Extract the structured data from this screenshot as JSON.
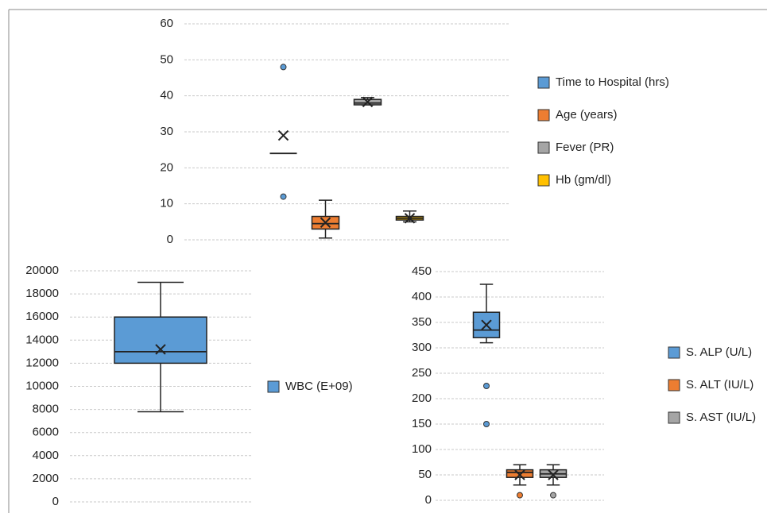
{
  "chart_data": [
    {
      "type": "box",
      "ylim": [
        0,
        60
      ],
      "yticks": [
        0,
        10,
        20,
        30,
        40,
        50,
        60
      ],
      "grid": true,
      "legend": "right",
      "series": [
        {
          "name": "Time to Hospital (hrs)",
          "color": "#5b9bd5",
          "min": 24,
          "q1": 24,
          "median": 24,
          "q3": 24,
          "max": 24,
          "mean": 29,
          "outliers": [
            48,
            12
          ]
        },
        {
          "name": "Age (years)",
          "color": "#ed7d31",
          "min": 0.5,
          "q1": 3,
          "median": 4.5,
          "q3": 6.5,
          "max": 11,
          "mean": 4.8,
          "outliers": []
        },
        {
          "name": "Fever (PR)",
          "color": "#a5a5a5",
          "min": 37.5,
          "q1": 37.5,
          "median": 38,
          "q3": 39,
          "max": 39.5,
          "mean": 38.3,
          "outliers": []
        },
        {
          "name": "Hb (gm/dl)",
          "color": "#ffc000",
          "min": 5,
          "q1": 5.5,
          "median": 6,
          "q3": 6.5,
          "max": 8,
          "mean": 6,
          "outliers": []
        }
      ]
    },
    {
      "type": "box",
      "ylim": [
        0,
        20000
      ],
      "yticks": [
        0,
        2000,
        4000,
        6000,
        8000,
        10000,
        12000,
        14000,
        16000,
        18000,
        20000
      ],
      "grid": true,
      "legend": "right",
      "series": [
        {
          "name": "WBC (E+09)",
          "color": "#5b9bd5",
          "min": 7800,
          "q1": 12000,
          "median": 13000,
          "q3": 16000,
          "max": 19000,
          "mean": 13200,
          "outliers": []
        }
      ]
    },
    {
      "type": "box",
      "ylim": [
        0,
        450
      ],
      "yticks": [
        0,
        50,
        100,
        150,
        200,
        250,
        300,
        350,
        400,
        450
      ],
      "grid": true,
      "legend": "right",
      "series": [
        {
          "name": "S. ALP (U/L)",
          "color": "#5b9bd5",
          "min": 310,
          "q1": 320,
          "median": 335,
          "q3": 370,
          "max": 425,
          "mean": 345,
          "outliers": [
            225,
            150
          ]
        },
        {
          "name": "S. ALT (IU/L)",
          "color": "#ed7d31",
          "min": 30,
          "q1": 45,
          "median": 55,
          "q3": 60,
          "max": 70,
          "mean": 50,
          "outliers": [
            10
          ]
        },
        {
          "name": "S. AST (IU/L)",
          "color": "#a5a5a5",
          "min": 30,
          "q1": 45,
          "median": 52,
          "q3": 60,
          "max": 70,
          "mean": 50,
          "outliers": [
            10
          ]
        }
      ]
    }
  ]
}
